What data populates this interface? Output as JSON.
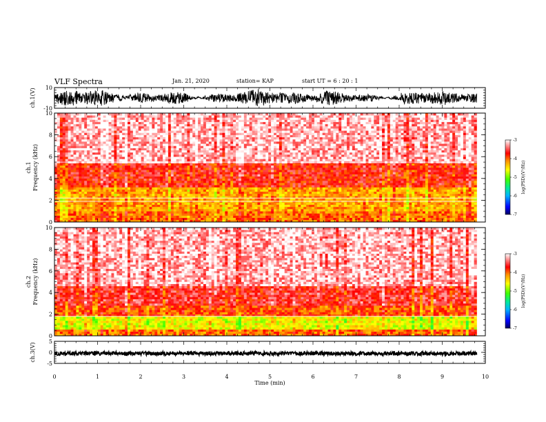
{
  "header": {
    "title": "VLF Spectra",
    "date": "Jan. 21, 2020",
    "station": "station= KAP",
    "start": "start  UT =   6 : 20 : 1"
  },
  "chart_data": [
    {
      "type": "line",
      "panel": "ch1-waveform",
      "ylabel": "ch.1(V)",
      "ylim": [
        -10,
        10
      ],
      "y_ticks": [
        "10",
        "-10"
      ],
      "description_series": "noisy broadband waveform oscillating between about -8 V and +8 V",
      "x_range_min": [
        0,
        9.8
      ]
    },
    {
      "type": "heatmap",
      "panel": "ch1-spectrogram",
      "ylabel": "Frequency  (kHz)",
      "channel_label": "ch.1",
      "ylim": [
        0,
        10
      ],
      "y_ticks": [
        "0",
        "2",
        "4",
        "6",
        "8",
        "10"
      ],
      "x_range_min": [
        0,
        9.8
      ],
      "colorbar": {
        "label": "log(PSD)(V²/Hz)",
        "range": [
          -7,
          -3
        ],
        "ticks": [
          "-3",
          "-4",
          "-5",
          "-6",
          "-7"
        ]
      },
      "bands": [
        {
          "freq_khz": [
            0,
            1.0
          ],
          "level": -4.0
        },
        {
          "freq_khz": [
            1.0,
            3.3
          ],
          "level": -4.2
        },
        {
          "freq_khz": [
            3.3,
            5.5
          ],
          "level": -3.7
        },
        {
          "freq_khz": [
            5.5,
            10
          ],
          "level": -3.2
        }
      ],
      "lines_khz": [
        5.5,
        2.2,
        1.9
      ]
    },
    {
      "type": "heatmap",
      "panel": "ch2-spectrogram",
      "ylabel": "Frequency  (kHz)",
      "channel_label": "ch.2",
      "ylim": [
        0,
        10
      ],
      "y_ticks": [
        "0",
        "2",
        "4",
        "6",
        "8",
        "10"
      ],
      "x_range_min": [
        0,
        9.8
      ],
      "colorbar": {
        "label": "log(PSD)(V²/Hz)",
        "range": [
          -7,
          -3
        ],
        "ticks": [
          "-3",
          "-4",
          "-5",
          "-6",
          "-7"
        ]
      },
      "bands": [
        {
          "freq_khz": [
            0,
            0.7
          ],
          "level": -4.0
        },
        {
          "freq_khz": [
            0.7,
            1.8
          ],
          "level": -4.6
        },
        {
          "freq_khz": [
            1.8,
            2.9
          ],
          "level": -3.9
        },
        {
          "freq_khz": [
            2.9,
            4.6
          ],
          "level": -3.6
        },
        {
          "freq_khz": [
            4.6,
            10
          ],
          "level": -3.2
        }
      ],
      "lines_khz": [
        1.8
      ]
    },
    {
      "type": "line",
      "panel": "ch3-waveform",
      "ylabel": "ch.3(V)",
      "ylim": [
        -5,
        5
      ],
      "y_ticks": [
        "5",
        "0",
        "-5"
      ],
      "x_range_min": [
        0,
        9.8
      ],
      "xlabel": "Time  (min)",
      "x_ticks": [
        "0",
        "1",
        "2",
        "3",
        "4",
        "5",
        "6",
        "7",
        "8",
        "9",
        "10"
      ],
      "xlim": [
        0,
        10
      ]
    }
  ]
}
